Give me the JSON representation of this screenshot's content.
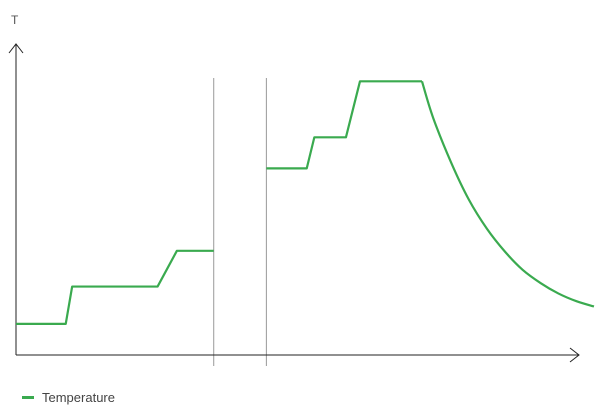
{
  "chart_data": {
    "type": "line",
    "title": "",
    "xlabel": "",
    "ylabel": "T",
    "grid": false,
    "legend_position": "bottom-left",
    "colors": {
      "series": "#3aaa4f",
      "axis": "#222222",
      "divider": "#999999"
    },
    "xlim": [
      0,
      100
    ],
    "ylim": [
      0,
      100
    ],
    "dividers": [
      33.8,
      42.8
    ],
    "series": [
      {
        "name": "Temperature",
        "segments": [
          {
            "points": [
              [
                0,
                10
              ],
              [
                8.5,
                10
              ],
              [
                9.6,
                22
              ],
              [
                24.2,
                22
              ],
              [
                27.5,
                33.5
              ],
              [
                33.8,
                33.5
              ]
            ]
          },
          {
            "points": [
              [
                42.8,
                60
              ],
              [
                49.7,
                60
              ],
              [
                51,
                70
              ],
              [
                56.4,
                70
              ],
              [
                58.8,
                88
              ],
              [
                69.4,
                88
              ]
            ]
          },
          {
            "points": [
              [
                69.4,
                88
              ],
              [
                71.3,
                76.3
              ],
              [
                74.4,
                61.8
              ],
              [
                77.4,
                50
              ],
              [
                80.5,
                40.6
              ],
              [
                83.6,
                33.2
              ],
              [
                86.6,
                27.4
              ],
              [
                89.7,
                23.1
              ],
              [
                92.7,
                19.8
              ],
              [
                95.8,
                17.3
              ],
              [
                98.8,
                15.6
              ]
            ]
          }
        ]
      }
    ]
  }
}
